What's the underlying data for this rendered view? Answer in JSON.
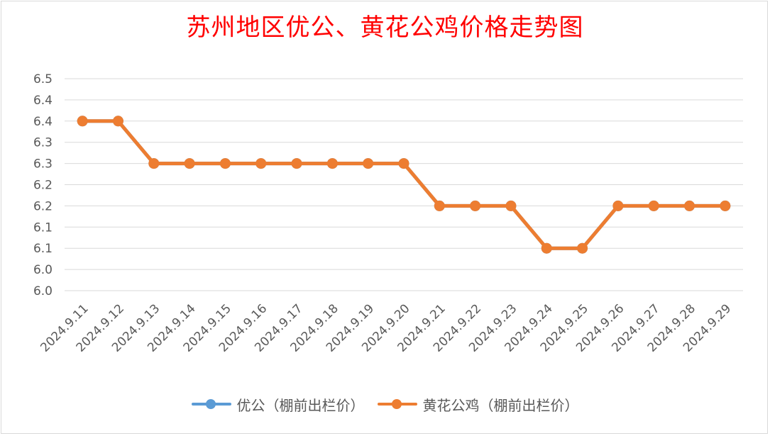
{
  "chart_data": {
    "type": "line",
    "title": "苏州地区优公、黄花公鸡价格走势图",
    "categories": [
      "2024.9.11",
      "2024.9.12",
      "2024.9.13",
      "2024.9.14",
      "2024.9.15",
      "2024.9.16",
      "2024.9.17",
      "2024.9.18",
      "2024.9.19",
      "2024.9.20",
      "2024.9.21",
      "2024.9.22",
      "2024.9.23",
      "2024.9.24",
      "2024.9.25",
      "2024.9.26",
      "2024.9.27",
      "2024.9.28",
      "2024.9.29"
    ],
    "series": [
      {
        "name": "优公（棚前出栏价）",
        "color": "#5b9bd5",
        "values": [
          6.4,
          6.4,
          6.3,
          6.3,
          6.3,
          6.3,
          6.3,
          6.3,
          6.3,
          6.3,
          6.2,
          6.2,
          6.2,
          6.1,
          6.1,
          6.2,
          6.2,
          6.2,
          6.2
        ]
      },
      {
        "name": "黄花公鸡（棚前出栏价）",
        "color": "#ed7d31",
        "values": [
          6.4,
          6.4,
          6.3,
          6.3,
          6.3,
          6.3,
          6.3,
          6.3,
          6.3,
          6.3,
          6.2,
          6.2,
          6.2,
          6.1,
          6.1,
          6.2,
          6.2,
          6.2,
          6.2
        ]
      }
    ],
    "y_ticks": [
      "6.5",
      "6.4",
      "6.4",
      "6.3",
      "6.3",
      "6.2",
      "6.2",
      "6.1",
      "6.1",
      "6.0",
      "6.0"
    ],
    "ylim": [
      6.0,
      6.5
    ],
    "grid": true,
    "legend": "bottom"
  }
}
